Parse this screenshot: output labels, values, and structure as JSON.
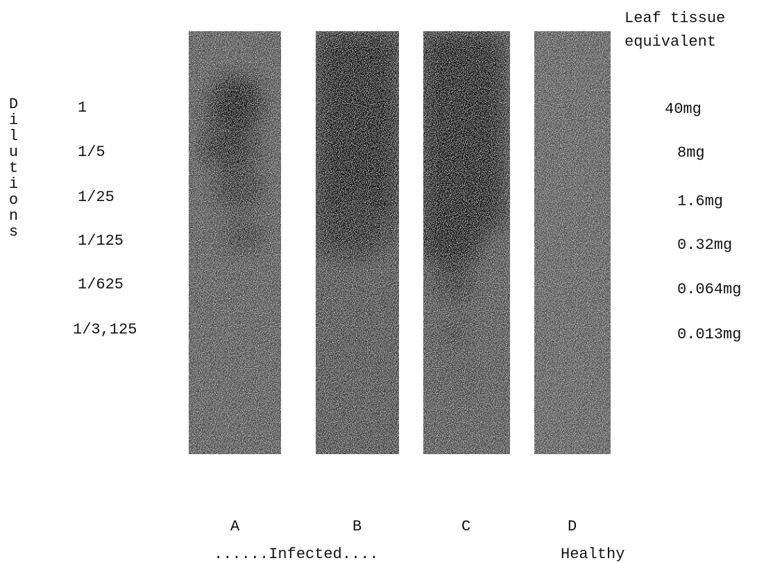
{
  "dilutions": {
    "label": "Dilutions",
    "values": [
      "1",
      "1/5",
      "1/25",
      "1/125",
      "1/625",
      "1/3,125"
    ]
  },
  "tissue": {
    "title_lines": [
      "Leaf tissue",
      "equivalent"
    ],
    "values": [
      "40mg",
      "8mg",
      "1.6mg",
      "0.32mg",
      "0.064mg",
      "0.013mg"
    ]
  },
  "strips": [
    {
      "label": "A"
    },
    {
      "label": "B"
    },
    {
      "label": "C"
    },
    {
      "label": "D"
    }
  ],
  "groups": {
    "infected": "......Infected....",
    "healthy": "Healthy"
  }
}
